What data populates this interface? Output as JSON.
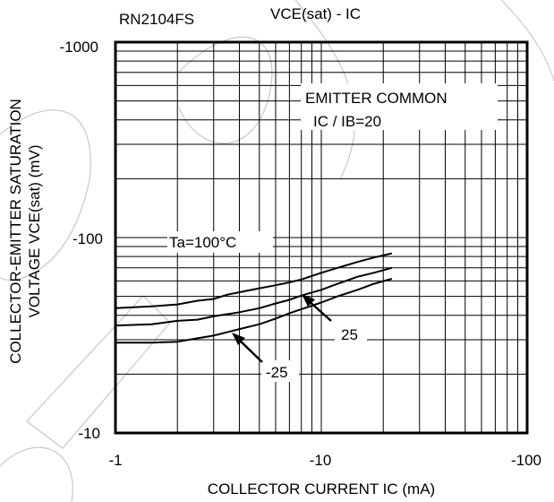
{
  "chart_data": {
    "type": "line",
    "title": "RN2104FS",
    "subtitle": "VCE(sat) - IC",
    "xlabel": "COLLECTOR CURRENT   IC (mA)",
    "ylabel_line1": "COLLECTOR-EMITTER SATURATION",
    "ylabel_line2": "VOLTAGE   VCE(sat) (mV)",
    "x_scale": "log",
    "y_scale": "log",
    "xlim": [
      -1,
      -100
    ],
    "ylim": [
      -10,
      -1000
    ],
    "x_ticks": [
      {
        "value": -1,
        "label": "-1"
      },
      {
        "value": -10,
        "label": "-10"
      },
      {
        "value": -100,
        "label": "-100"
      }
    ],
    "y_ticks": [
      {
        "value": -10,
        "label": "-10"
      },
      {
        "value": -100,
        "label": "-100"
      },
      {
        "value": -1000,
        "label": "-1000"
      }
    ],
    "grid": true,
    "annotation_lines": [
      "EMITTER COMMON",
      "IC / IB=20"
    ],
    "series": [
      {
        "label": "Ta=100°C",
        "x": [
          -1,
          -1.5,
          -2,
          -2.5,
          -3,
          -3.5,
          -4,
          -5,
          -6,
          -7,
          -8,
          -10,
          -12,
          -15,
          -18,
          -22
        ],
        "y": [
          -43.5,
          -44.5,
          -45.5,
          -47.5,
          -48.5,
          -51,
          -52.5,
          -55,
          -57,
          -59,
          -61,
          -66,
          -70,
          -75,
          -79,
          -83
        ]
      },
      {
        "label": "25",
        "x": [
          -1,
          -1.5,
          -2,
          -2.5,
          -3,
          -4,
          -5,
          -6,
          -7,
          -8,
          -10,
          -12,
          -15,
          -18,
          -22
        ],
        "y": [
          -35.5,
          -36,
          -37.5,
          -38,
          -39.5,
          -41.5,
          -43.5,
          -46,
          -48,
          -50.5,
          -54,
          -58,
          -63,
          -66,
          -70
        ]
      },
      {
        "label": "-25",
        "x": [
          -1,
          -1.5,
          -2,
          -2.5,
          -3,
          -4,
          -5,
          -6,
          -7,
          -8,
          -10,
          -12,
          -15,
          -18,
          -22
        ],
        "y": [
          -29,
          -29,
          -29.3,
          -30.5,
          -31.5,
          -34,
          -36,
          -38.5,
          -41,
          -43,
          -46.5,
          -50,
          -54,
          -58,
          -61.5
        ]
      }
    ]
  }
}
